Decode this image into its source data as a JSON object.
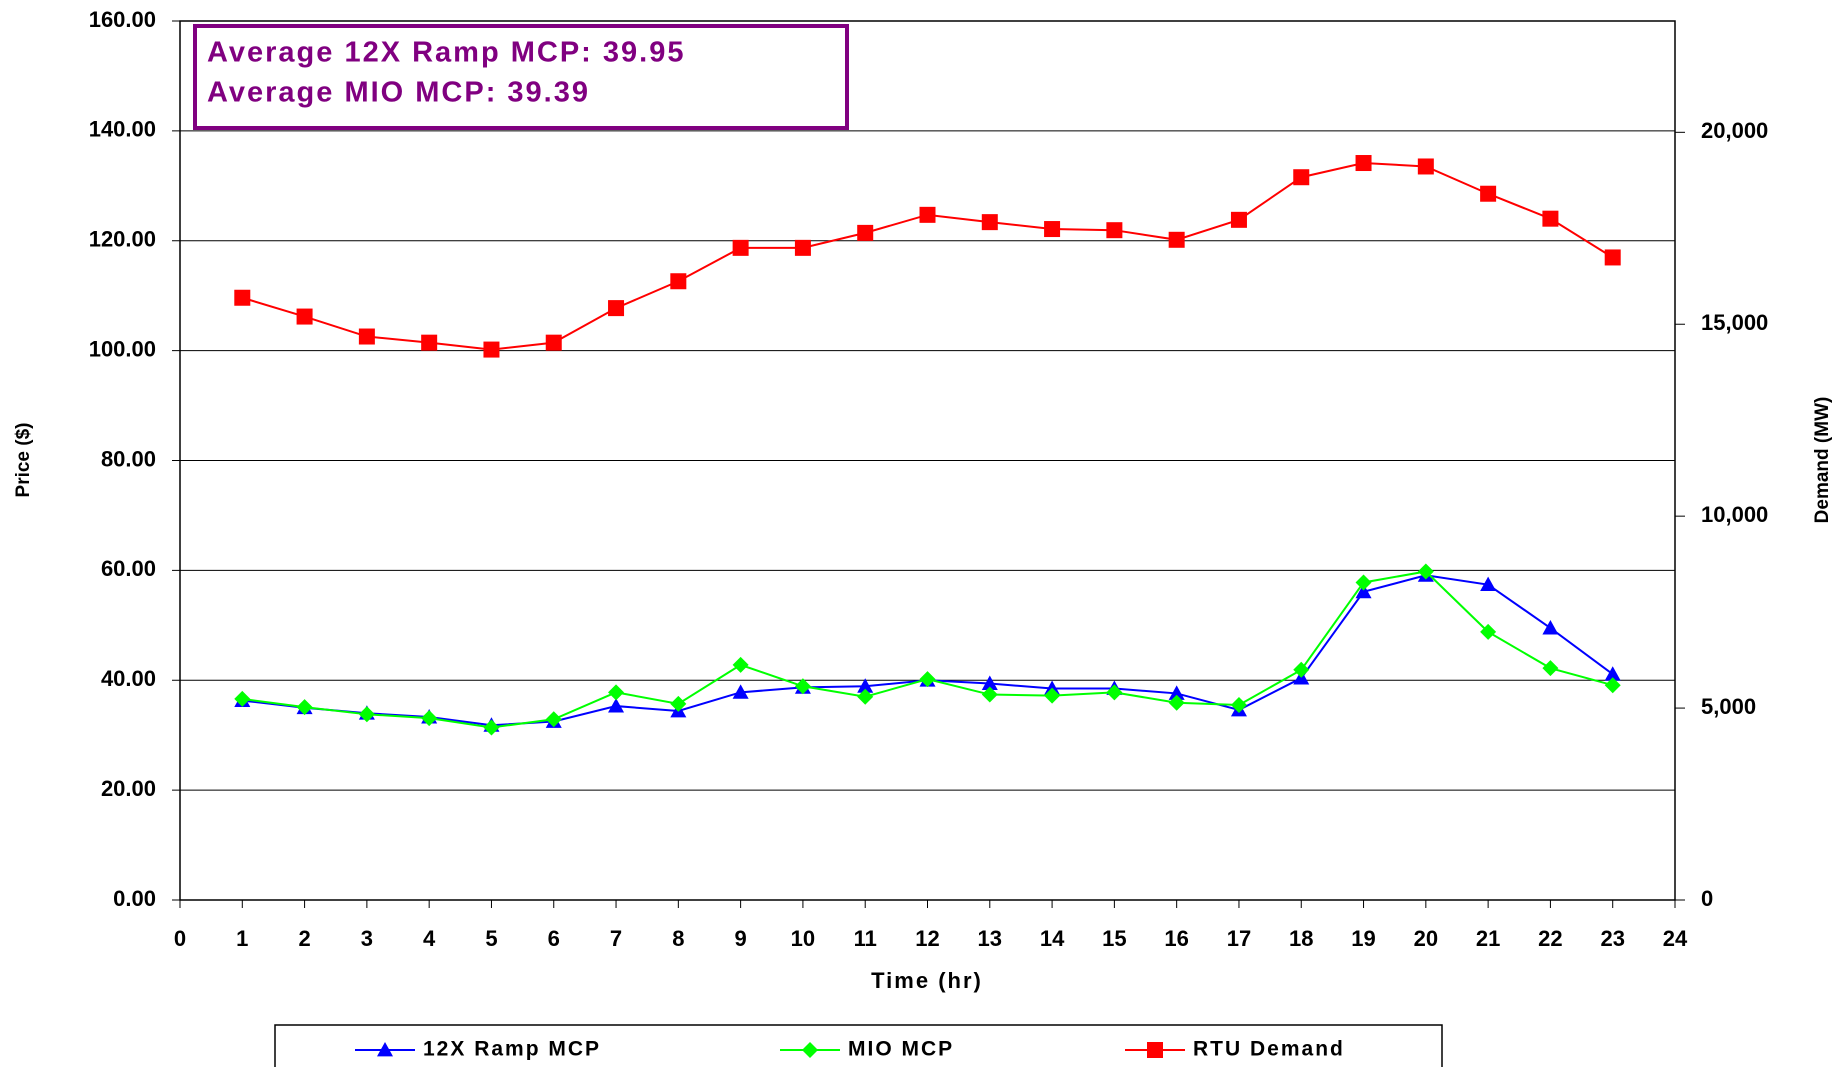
{
  "chart_data": {
    "type": "line",
    "xlabel": "Time (hr)",
    "ylabel": "Price ($)",
    "y2label": "Demand (MW)",
    "annotations": [
      "Average 12X Ramp MCP: 39.95",
      "Average MIO MCP: 39.39"
    ],
    "x": [
      1,
      2,
      3,
      4,
      5,
      6,
      7,
      8,
      9,
      10,
      11,
      12,
      13,
      14,
      15,
      16,
      17,
      18,
      19,
      20,
      21,
      22,
      23
    ],
    "xlim": [
      0,
      24
    ],
    "xticks": [
      0,
      1,
      2,
      3,
      4,
      5,
      6,
      7,
      8,
      9,
      10,
      11,
      12,
      13,
      14,
      15,
      16,
      17,
      18,
      19,
      20,
      21,
      22,
      23,
      24
    ],
    "ylim": [
      0,
      160
    ],
    "yticks": [
      {
        "value": 0,
        "label": "0.00"
      },
      {
        "value": 20,
        "label": "20.00"
      },
      {
        "value": 40,
        "label": "40.00"
      },
      {
        "value": 60,
        "label": "60.00"
      },
      {
        "value": 80,
        "label": "80.00"
      },
      {
        "value": 100,
        "label": "100.00"
      },
      {
        "value": 120,
        "label": "120.00"
      },
      {
        "value": 140,
        "label": "140.00"
      },
      {
        "value": 160,
        "label": "160.00"
      }
    ],
    "y2lim": [
      0,
      22900
    ],
    "y2ticks": [
      0,
      {
        "value": 5000,
        "label": "5,000"
      },
      {
        "value": 10000,
        "label": "10,000"
      },
      {
        "value": 15000,
        "label": "15,000"
      },
      {
        "value": 20000,
        "label": "20,000"
      }
    ],
    "grid": true,
    "legend": "bottom",
    "series": [
      {
        "name": "12X Ramp MCP",
        "color": "#0000ff",
        "marker": "triangle",
        "values": [
          36.3,
          35.0,
          34.0,
          33.3,
          31.8,
          32.5,
          35.3,
          34.4,
          37.8,
          38.7,
          38.9,
          40.0,
          39.4,
          38.5,
          38.5,
          37.6,
          34.6,
          40.4,
          56.1,
          59.1,
          57.4,
          49.5,
          41.1
        ]
      },
      {
        "name": "MIO MCP",
        "color": "#00ff00",
        "marker": "diamond",
        "values": [
          36.6,
          35.1,
          33.8,
          33.1,
          31.4,
          32.9,
          37.8,
          35.7,
          42.8,
          38.9,
          37.0,
          40.2,
          37.4,
          37.2,
          37.8,
          35.9,
          35.5,
          41.9,
          57.8,
          59.8,
          48.8,
          42.2,
          39.1
        ]
      },
      {
        "name": "RTU Demand",
        "color": "#ff0000",
        "marker": "square",
        "axis": "y2",
        "values": [
          15690,
          15200,
          14680,
          14520,
          14340,
          14520,
          15420,
          16120,
          16990,
          16990,
          17380,
          17850,
          17660,
          17480,
          17450,
          17200,
          17720,
          18830,
          19200,
          19110,
          18400,
          17750,
          16740
        ]
      }
    ]
  }
}
